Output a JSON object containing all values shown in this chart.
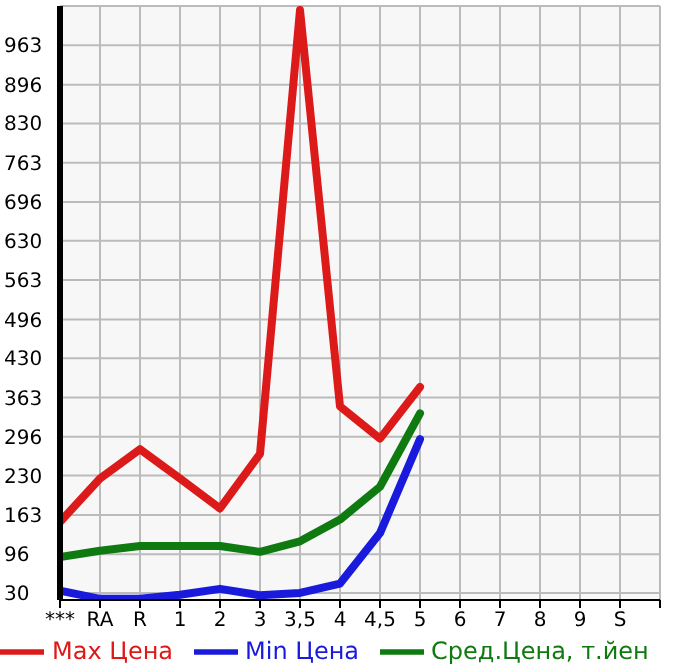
{
  "chart_data": {
    "type": "line",
    "categories": [
      "***",
      "RA",
      "R",
      "1",
      "2",
      "3",
      "3,5",
      "4",
      "4,5",
      "5",
      "6",
      "7",
      "8",
      "9",
      "S"
    ],
    "series": [
      {
        "name": "Max Цена",
        "color": "#dd1a1a",
        "values": [
          151,
          225,
          275,
          225,
          174,
          267,
          1023,
          348,
          293,
          381,
          null,
          null,
          null,
          null,
          null
        ]
      },
      {
        "name": "Min Цена",
        "color": "#1a1add",
        "values": [
          34,
          20,
          20,
          27,
          37,
          26,
          30,
          46,
          132,
          292,
          null,
          null,
          null,
          null,
          null
        ]
      },
      {
        "name": "Сред.Цена, т.йен",
        "color": "#0f7a0f",
        "values": [
          91,
          102,
          110,
          110,
          110,
          100,
          118,
          155,
          211,
          336,
          null,
          null,
          null,
          null,
          null
        ]
      }
    ],
    "ylim": [
      18,
      1030
    ],
    "yticks": [
      30,
      96,
      163,
      230,
      296,
      363,
      430,
      496,
      563,
      630,
      696,
      763,
      830,
      896,
      963
    ],
    "grid": true,
    "legend": "bottom",
    "marker": "none",
    "line_style": "solid"
  }
}
